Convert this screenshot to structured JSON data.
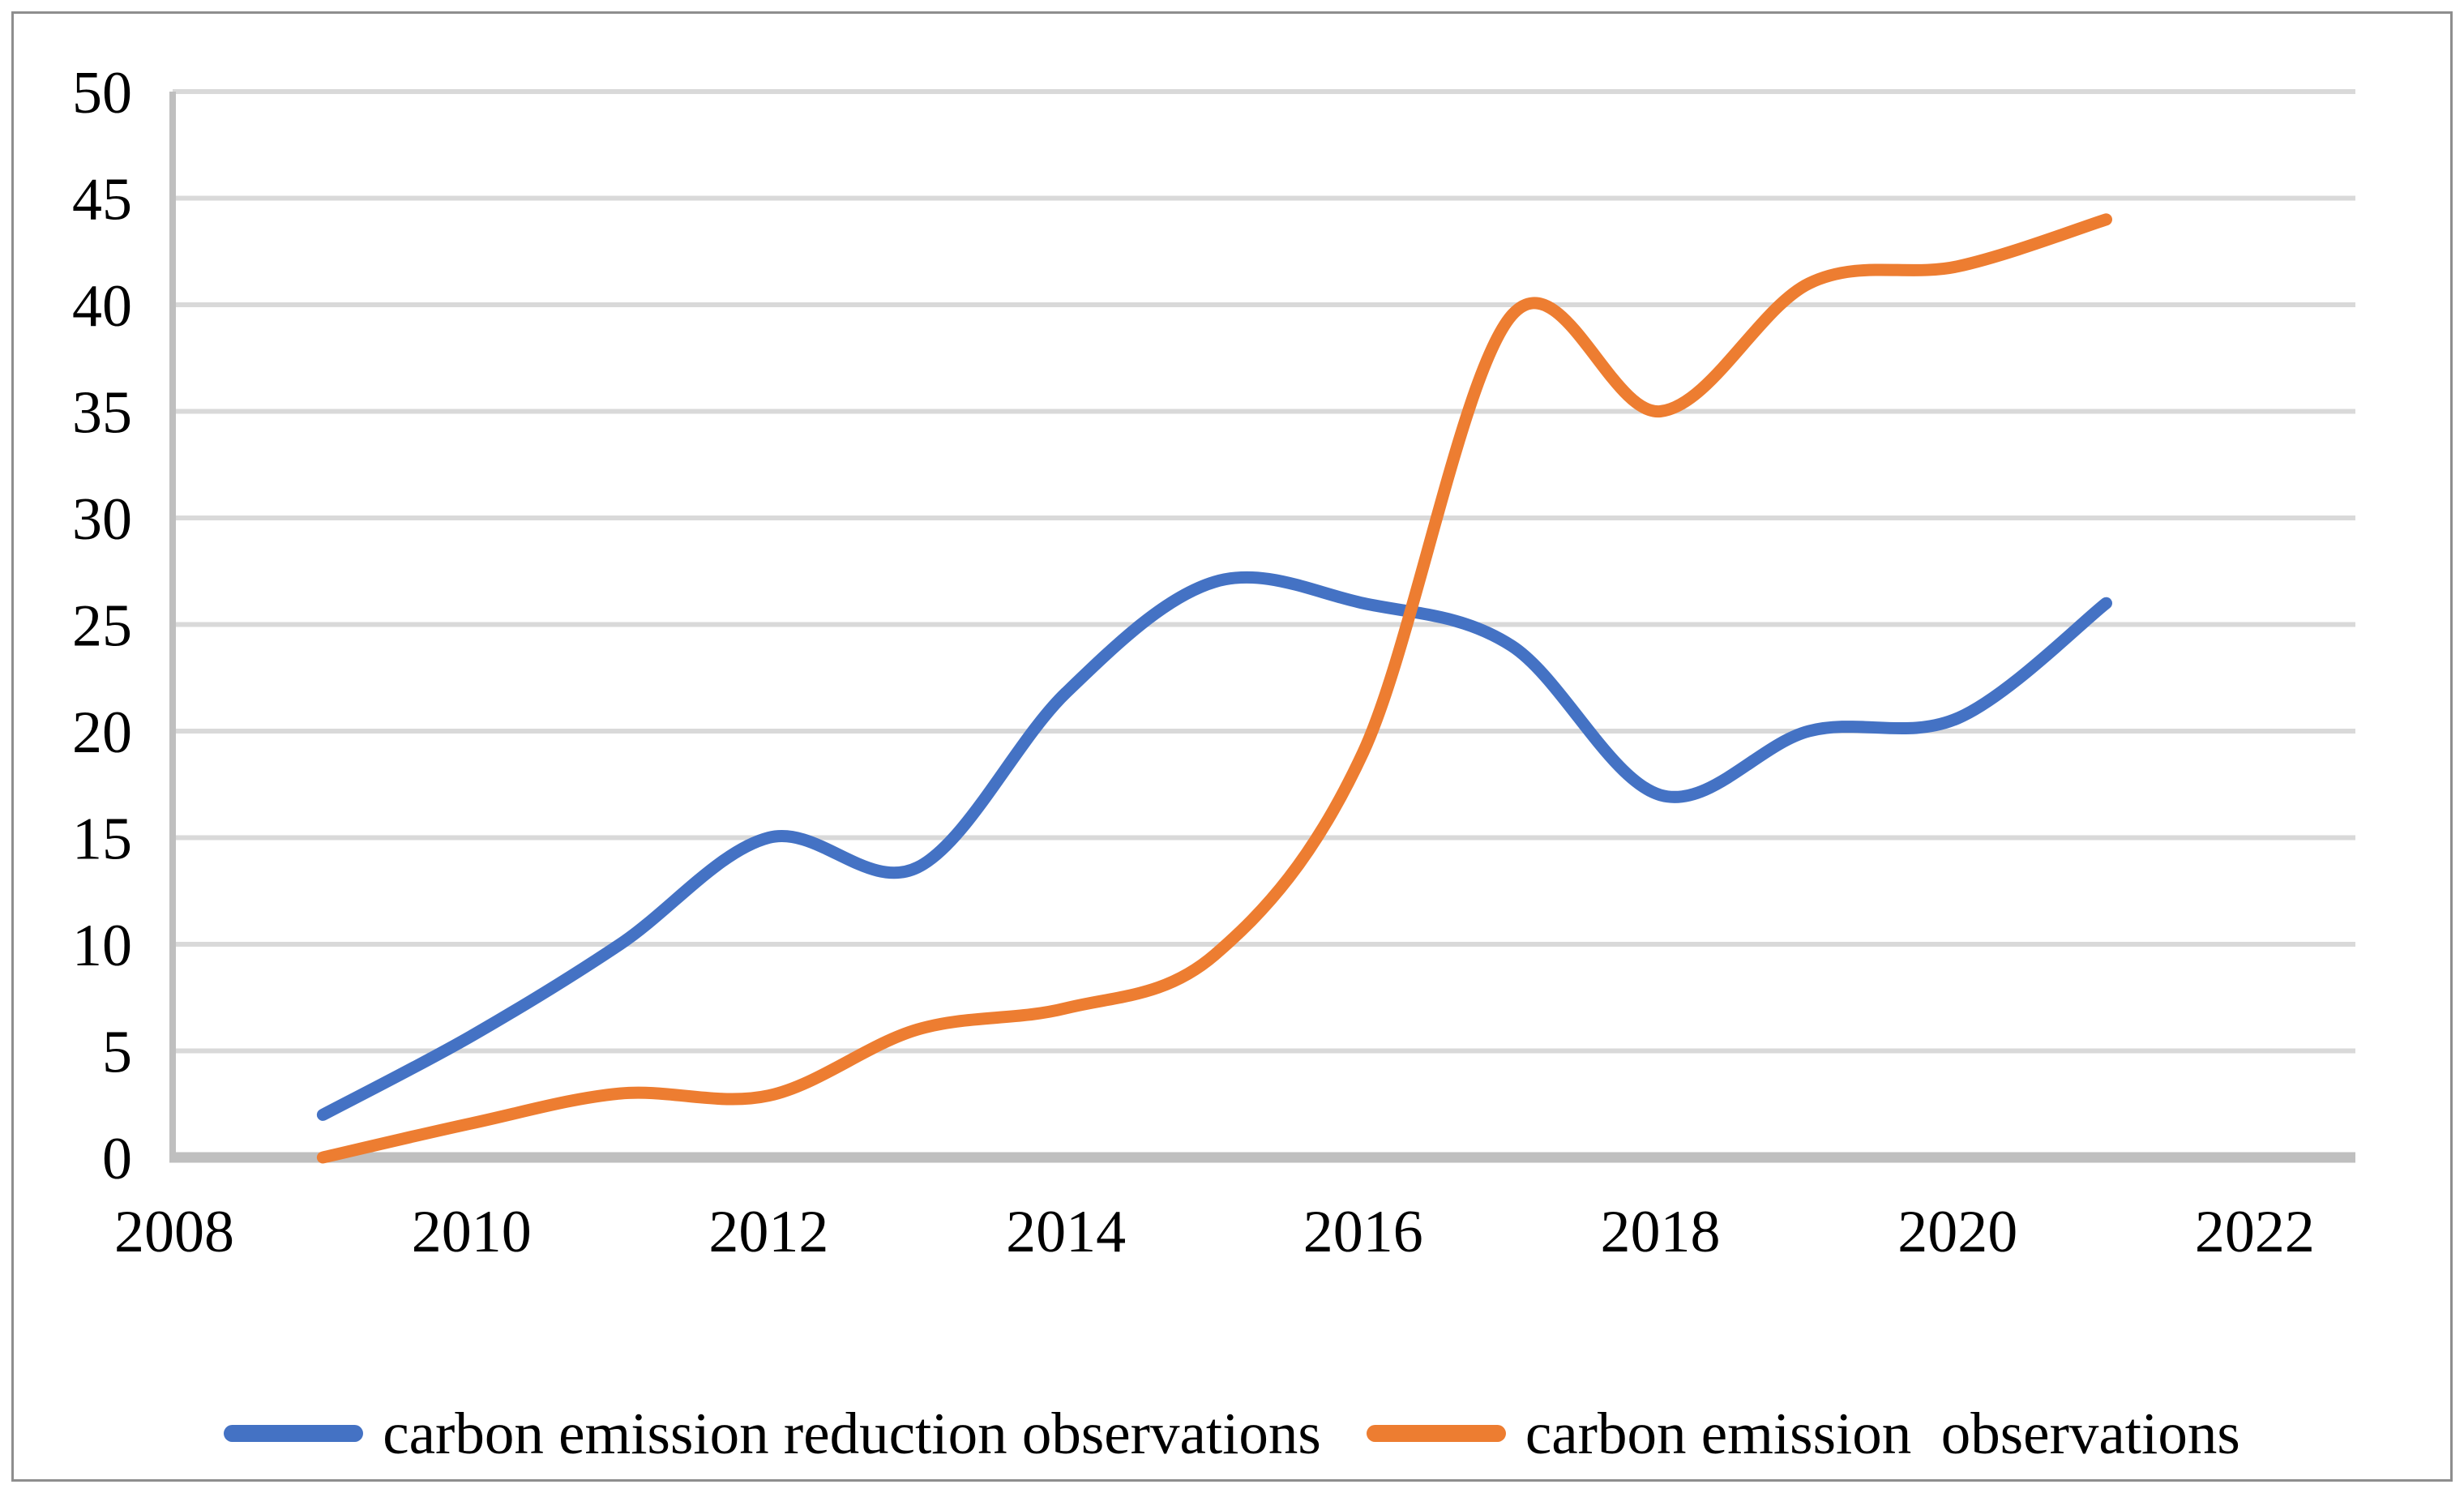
{
  "chart_data": {
    "type": "line",
    "title": "",
    "xlabel": "",
    "ylabel": "",
    "grid": true,
    "legend_position": "bottom",
    "x": [
      2009,
      2010,
      2011,
      2012,
      2013,
      2014,
      2015,
      2016,
      2017,
      2018,
      2019,
      2020,
      2021
    ],
    "series": [
      {
        "key": "carbon-emission-reduction",
        "name": "carbon emission reduction observations",
        "color": "#4472C4",
        "values": [
          2,
          5.7,
          10,
          15,
          13.6,
          21.8,
          27,
          26,
          24,
          17,
          20,
          20.6,
          26
        ]
      },
      {
        "key": "carbon-emission",
        "name": "carbon emission  observations",
        "color": "#ED7D31",
        "values": [
          0,
          1.6,
          3,
          2.9,
          6,
          7,
          9.5,
          19,
          39.5,
          35,
          41,
          41.8,
          44
        ]
      }
    ],
    "x_axis": {
      "min": 2008,
      "max": 2022,
      "tick_step": 2,
      "tick_labels": [
        "2008",
        "2010",
        "2012",
        "2014",
        "2016",
        "2018",
        "2020",
        "2022"
      ]
    },
    "y_axis": {
      "min": 0,
      "max": 50,
      "tick_step": 5,
      "tick_labels": [
        "0",
        "5",
        "10",
        "15",
        "20",
        "25",
        "30",
        "35",
        "40",
        "45",
        "50"
      ]
    }
  },
  "colors": {
    "series_blue": "#4472C4",
    "series_orange": "#ED7D31",
    "gridline": "#D9D9D9",
    "axis_line": "#BFBFBF",
    "text": "#000000",
    "frame_border": "#8E8E8E",
    "background": "#FFFFFF"
  }
}
